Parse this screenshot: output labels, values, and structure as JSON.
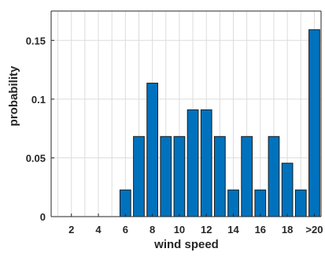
{
  "chart_data": {
    "type": "bar",
    "categories": [
      "1",
      "2",
      "3",
      "4",
      "5",
      "6",
      "7",
      "8",
      "9",
      "10",
      "11",
      "12",
      "13",
      "14",
      "15",
      "16",
      "17",
      "18",
      "19",
      ">20"
    ],
    "values": [
      0,
      0,
      0,
      0,
      0,
      0.0227,
      0.0682,
      0.1136,
      0.0682,
      0.0682,
      0.0909,
      0.0909,
      0.0682,
      0.0227,
      0.0682,
      0.0227,
      0.0682,
      0.0455,
      0.0227,
      0.1591
    ],
    "x_tick_labels": [
      {
        "category": "2",
        "label": "2"
      },
      {
        "category": "4",
        "label": "4"
      },
      {
        "category": "6",
        "label": "6"
      },
      {
        "category": "8",
        "label": "8"
      },
      {
        "category": "10",
        "label": "10"
      },
      {
        "category": "12",
        "label": "12"
      },
      {
        "category": "14",
        "label": "14"
      },
      {
        "category": "16",
        "label": "16"
      },
      {
        "category": "18",
        "label": "18"
      },
      {
        "category": ">20",
        "label": ">20"
      }
    ],
    "y_ticks": [
      {
        "value": 0,
        "label": "0"
      },
      {
        "value": 0.05,
        "label": "0.05"
      },
      {
        "value": 0.1,
        "label": "0.1"
      },
      {
        "value": 0.15,
        "label": "0.15"
      }
    ],
    "xlabel": "wind speed",
    "ylabel": "probability",
    "ylim": [
      0,
      0.175
    ],
    "grid": true,
    "bar_color": "#0072BD",
    "bar_edge_color": "#1a1a1a"
  }
}
